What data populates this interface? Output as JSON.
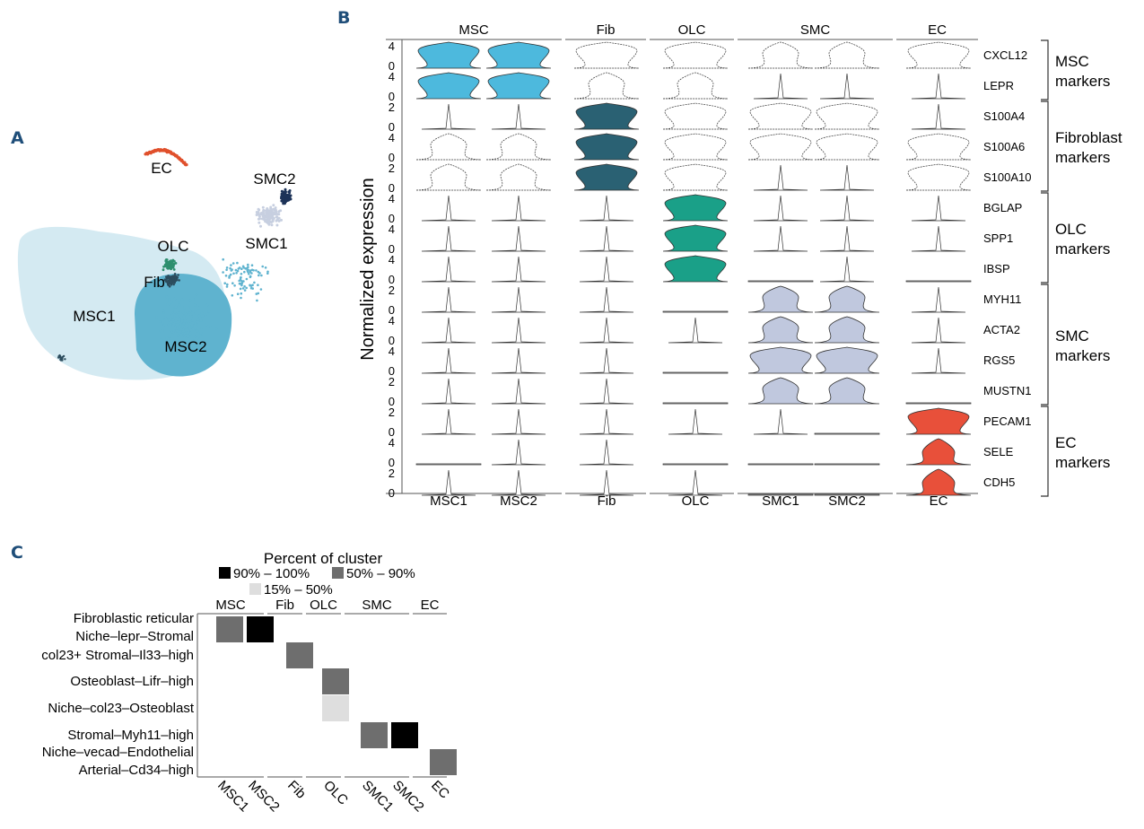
{
  "panels": {
    "a": "A",
    "b": "B",
    "c": "C"
  },
  "colors": {
    "MSC1": "#d4eaf2",
    "MSC2": "#5fb3cf",
    "Fib": "#2c4d5e",
    "OLC": "#2e8f6f",
    "SMC1": "#c7cfe0",
    "SMC2": "#1d3358",
    "EC": "#e0502c",
    "violin_msc": "#4db9dd",
    "violin_fib": "#2a6173",
    "violin_olc": "#1aa088",
    "violin_smc": "#c0c8de",
    "violin_ec": "#e8503a"
  },
  "chart_data": [
    {
      "panel": "A",
      "type": "scatter",
      "title": "",
      "cluster_labels": [
        "EC",
        "SMC2",
        "SMC1",
        "OLC",
        "Fib",
        "MSC1",
        "MSC2"
      ]
    },
    {
      "panel": "B",
      "type": "violin",
      "ylabel": "Normalized expression",
      "group_headers": [
        "MSC",
        "Fib",
        "OLC",
        "SMC",
        "EC"
      ],
      "group_columns": [
        [
          0,
          1
        ],
        [
          2
        ],
        [
          3
        ],
        [
          4,
          5
        ],
        [
          6
        ]
      ],
      "clusters": [
        "MSC1",
        "MSC2",
        "Fib",
        "OLC",
        "SMC1",
        "SMC2",
        "EC"
      ],
      "cluster_colors": [
        "#4db9dd",
        "#4db9dd",
        "#2a6173",
        "#1aa088",
        "#c0c8de",
        "#c0c8de",
        "#e8503a"
      ],
      "genes": [
        "CXCL12",
        "LEPR",
        "S100A4",
        "S100A6",
        "S100A10",
        "BGLAP",
        "SPP1",
        "IBSP",
        "MYH11",
        "ACTA2",
        "RGS5",
        "MUSTN1",
        "PECAM1",
        "SELE",
        "CDH5"
      ],
      "yticks": [
        [
          "4",
          "0"
        ],
        [
          "4",
          "0"
        ],
        [
          "2",
          "0"
        ],
        [
          "4",
          "0"
        ],
        [
          "2",
          "0"
        ],
        [
          "4",
          "0"
        ],
        [
          "4",
          "0"
        ],
        [
          "4",
          "0"
        ],
        [
          "2",
          "0"
        ],
        [
          "4",
          "0"
        ],
        [
          "4",
          "0"
        ],
        [
          "2",
          "0"
        ],
        [
          "2",
          "0"
        ],
        [
          "4",
          "0"
        ],
        [
          "2",
          "0"
        ]
      ],
      "gene_groups": [
        {
          "lines": [
            "MSC",
            "markers"
          ],
          "genes": [
            0,
            1
          ]
        },
        {
          "lines": [
            "Fibroblast",
            "markers"
          ],
          "genes": [
            2,
            3,
            4
          ]
        },
        {
          "lines": [
            "OLC",
            "markers"
          ],
          "genes": [
            5,
            6,
            7
          ]
        },
        {
          "lines": [
            "SMC",
            "markers"
          ],
          "genes": [
            8,
            9,
            10,
            11
          ]
        },
        {
          "lines": [
            "EC",
            "markers"
          ],
          "genes": [
            12,
            13,
            14
          ]
        }
      ],
      "violin_shapes": [
        "wide",
        "tall",
        "spike",
        "mid",
        "flat"
      ],
      "violin_matrix": [
        [
          "wide",
          "wide",
          "wide",
          "wide",
          "mid",
          "mid",
          "wide"
        ],
        [
          "wide",
          "wide",
          "mid",
          "mid",
          "spike",
          "spike",
          "spike"
        ],
        [
          "spike",
          "spike",
          "wide",
          "wide",
          "wide",
          "wide",
          "spike"
        ],
        [
          "mid",
          "mid",
          "wide",
          "wide",
          "wide",
          "wide",
          "wide"
        ],
        [
          "mid",
          "mid",
          "wide",
          "wide",
          "spike",
          "spike",
          "wide"
        ],
        [
          "spike",
          "spike",
          "spike",
          "wide",
          "spike",
          "spike",
          "spike"
        ],
        [
          "spike",
          "spike",
          "spike",
          "wide",
          "spike",
          "spike",
          "spike"
        ],
        [
          "spike",
          "spike",
          "spike",
          "wide",
          "flat",
          "spike",
          "flat"
        ],
        [
          "spike",
          "spike",
          "spike",
          "flat",
          "mid",
          "mid",
          "spike"
        ],
        [
          "spike",
          "spike",
          "spike",
          "spike",
          "mid",
          "mid",
          "spike"
        ],
        [
          "spike",
          "spike",
          "spike",
          "flat",
          "wide",
          "wide",
          "spike"
        ],
        [
          "spike",
          "spike",
          "spike",
          "flat",
          "mid",
          "mid",
          "flat"
        ],
        [
          "spike",
          "spike",
          "spike",
          "spike",
          "spike",
          "flat",
          "wide"
        ],
        [
          "flat",
          "spike",
          "spike",
          "flat",
          "flat",
          "flat",
          "tall"
        ],
        [
          "spike",
          "spike",
          "spike",
          "spike",
          "flat",
          "flat",
          "tall"
        ]
      ],
      "highlight": [
        [
          1,
          1,
          0,
          0,
          0,
          0,
          0
        ],
        [
          1,
          1,
          0,
          0,
          0,
          0,
          0
        ],
        [
          0,
          0,
          1,
          0,
          0,
          0,
          0
        ],
        [
          0,
          0,
          1,
          0,
          0,
          0,
          0
        ],
        [
          0,
          0,
          1,
          0,
          0,
          0,
          0
        ],
        [
          0,
          0,
          0,
          1,
          0,
          0,
          0
        ],
        [
          0,
          0,
          0,
          1,
          0,
          0,
          0
        ],
        [
          0,
          0,
          0,
          1,
          0,
          0,
          0
        ],
        [
          0,
          0,
          0,
          0,
          1,
          1,
          0
        ],
        [
          0,
          0,
          0,
          0,
          1,
          1,
          0
        ],
        [
          0,
          0,
          0,
          0,
          1,
          1,
          0
        ],
        [
          0,
          0,
          0,
          0,
          1,
          1,
          0
        ],
        [
          0,
          0,
          0,
          0,
          0,
          0,
          1
        ],
        [
          0,
          0,
          0,
          0,
          0,
          0,
          1
        ],
        [
          0,
          0,
          0,
          0,
          0,
          0,
          1
        ]
      ]
    },
    {
      "panel": "C",
      "type": "heatmap",
      "title": "Percent of cluster",
      "legend": [
        {
          "label": "90% – 100%",
          "color": "#000000"
        },
        {
          "label": "50% – 90%",
          "color": "#6e6e6e"
        },
        {
          "label": "15% – 50%",
          "color": "#dedede"
        }
      ],
      "group_headers": [
        "MSC",
        "Fib",
        "OLC",
        "SMC",
        "EC"
      ],
      "group_columns": [
        [
          0,
          1
        ],
        [
          2
        ],
        [
          3
        ],
        [
          4,
          5
        ],
        [
          6
        ]
      ],
      "columns": [
        "MSC1",
        "MSC2",
        "Fib",
        "OLC",
        "SMC1",
        "SMC2",
        "EC"
      ],
      "rows": [
        "Fibroblastic reticular",
        "Niche–lepr–Stromal",
        "col23+ Stromal–Il33–high",
        "Osteoblast–Lifr–high",
        "Niche–col23–Osteoblast",
        "Stromal–Myh11–high",
        "Niche–vecad–Endothelial",
        "Arterial–Cd34–high"
      ],
      "cells": [
        {
          "row": 0,
          "col": 0,
          "category": "50% – 90%"
        },
        {
          "row": 0,
          "col": 1,
          "category": "90% – 100%"
        },
        {
          "row": 2,
          "col": 2,
          "category": "50% – 90%"
        },
        {
          "row": 3,
          "col": 3,
          "category": "50% – 90%"
        },
        {
          "row": 4,
          "col": 3,
          "category": "15% – 50%"
        },
        {
          "row": 5,
          "col": 4,
          "category": "50% – 90%"
        },
        {
          "row": 5,
          "col": 5,
          "category": "90% – 100%"
        },
        {
          "row": 7,
          "col": 6,
          "category": "50% – 90%"
        }
      ]
    }
  ]
}
